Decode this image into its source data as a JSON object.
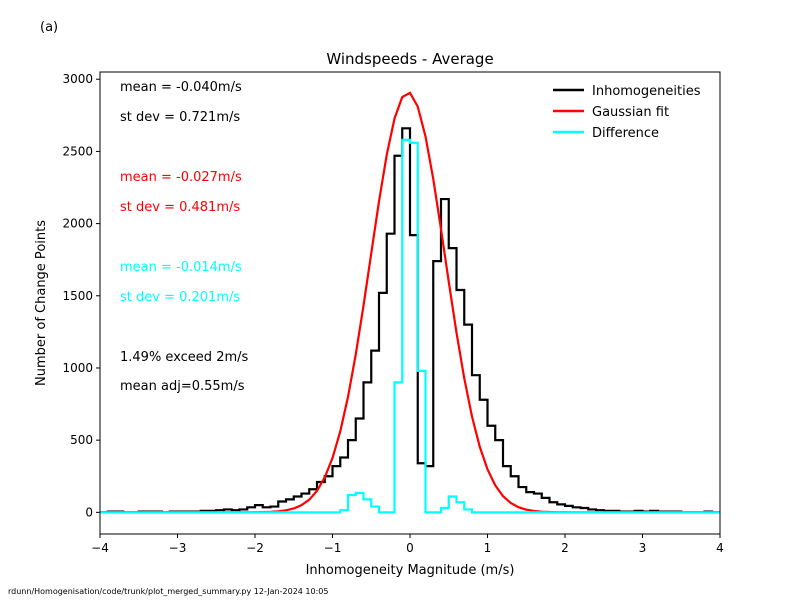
{
  "panel_label": "(a)",
  "footer": "rdunn/Homogenisation/code/trunk/plot_merged_summary.py   12-Jan-2024 10:05",
  "chart_data": {
    "type": "line",
    "title": "Windspeeds - Average",
    "xlabel": "Inhomogeneity Magnitude (m/s)",
    "ylabel": "Number of Change Points",
    "xlim": [
      -4,
      4
    ],
    "ylim": [
      -150,
      3050
    ],
    "xticks": [
      -4,
      -3,
      -2,
      -1,
      0,
      1,
      2,
      3,
      4
    ],
    "yticks": [
      0,
      500,
      1000,
      1500,
      2000,
      2500,
      3000
    ],
    "grid": false,
    "legend_position": "top-right",
    "colors": {
      "inhomogeneities": "#000000",
      "gaussian": "#ff0000",
      "difference": "#00ffff"
    },
    "annotations": [
      {
        "text": "mean = -0.040m/s",
        "color": "#000000"
      },
      {
        "text": "st dev =  0.721m/s",
        "color": "#000000"
      },
      {
        "text": "mean = -0.027m/s",
        "color": "#ff0000"
      },
      {
        "text": "st dev =  0.481m/s",
        "color": "#ff0000"
      },
      {
        "text": "mean = -0.014m/s",
        "color": "#00ffff"
      },
      {
        "text": "st dev =  0.201m/s",
        "color": "#00ffff"
      },
      {
        "text": "1.49% exceed 2m/s",
        "color": "#000000"
      },
      {
        "text": "mean adj=0.55m/s",
        "color": "#000000"
      }
    ],
    "series": [
      {
        "name": "Inhomogeneities",
        "kind": "step",
        "x": [
          -4.0,
          -3.9,
          -3.8,
          -3.7,
          -3.6,
          -3.5,
          -3.4,
          -3.3,
          -3.2,
          -3.1,
          -3.0,
          -2.9,
          -2.8,
          -2.7,
          -2.6,
          -2.5,
          -2.4,
          -2.3,
          -2.2,
          -2.1,
          -2.0,
          -1.9,
          -1.8,
          -1.7,
          -1.6,
          -1.5,
          -1.4,
          -1.3,
          -1.2,
          -1.1,
          -1.0,
          -0.9,
          -0.8,
          -0.7,
          -0.6,
          -0.5,
          -0.4,
          -0.3,
          -0.2,
          -0.1,
          0.0,
          0.1,
          0.2,
          0.3,
          0.4,
          0.5,
          0.6,
          0.7,
          0.8,
          0.9,
          1.0,
          1.1,
          1.2,
          1.3,
          1.4,
          1.5,
          1.6,
          1.7,
          1.8,
          1.9,
          2.0,
          2.1,
          2.2,
          2.3,
          2.4,
          2.5,
          2.6,
          2.7,
          2.8,
          2.9,
          3.0,
          3.1,
          3.2,
          3.3,
          3.4,
          3.5,
          3.6,
          3.7,
          3.8,
          3.9
        ],
        "values": [
          0,
          5,
          5,
          0,
          0,
          5,
          5,
          5,
          0,
          5,
          5,
          5,
          5,
          10,
          10,
          15,
          20,
          15,
          20,
          35,
          50,
          35,
          40,
          75,
          90,
          110,
          130,
          160,
          210,
          250,
          320,
          380,
          500,
          650,
          900,
          1120,
          1520,
          1930,
          2470,
          2660,
          1920,
          340,
          320,
          1740,
          2170,
          1830,
          1540,
          1300,
          950,
          780,
          600,
          500,
          320,
          250,
          175,
          140,
          130,
          100,
          70,
          55,
          45,
          35,
          30,
          20,
          15,
          10,
          10,
          5,
          5,
          10,
          5,
          10,
          5,
          5,
          5,
          0,
          0,
          0,
          5,
          0
        ]
      },
      {
        "name": "Gaussian fit",
        "kind": "curve",
        "mean": -0.027,
        "sd": 0.481,
        "peak": 2910
      },
      {
        "name": "Difference",
        "kind": "step",
        "x": [
          -4.0,
          -3.9,
          -3.8,
          -3.7,
          -3.6,
          -3.5,
          -3.4,
          -3.3,
          -3.2,
          -3.1,
          -3.0,
          -2.9,
          -2.8,
          -2.7,
          -2.6,
          -2.5,
          -2.4,
          -2.3,
          -2.2,
          -2.1,
          -2.0,
          -1.9,
          -1.8,
          -1.7,
          -1.6,
          -1.5,
          -1.4,
          -1.3,
          -1.2,
          -1.1,
          -1.0,
          -0.9,
          -0.8,
          -0.7,
          -0.6,
          -0.5,
          -0.4,
          -0.3,
          -0.2,
          -0.1,
          0.0,
          0.1,
          0.2,
          0.3,
          0.4,
          0.5,
          0.6,
          0.7,
          0.8,
          0.9,
          1.0,
          1.1,
          1.2,
          1.3,
          1.4,
          1.5,
          1.6,
          1.7,
          1.8,
          1.9,
          2.0,
          2.1,
          2.2,
          2.3,
          2.4,
          2.5,
          2.6,
          2.7,
          2.8,
          2.9,
          3.0,
          3.1,
          3.2,
          3.3,
          3.4,
          3.5,
          3.6,
          3.7,
          3.8,
          3.9
        ],
        "values": [
          0,
          0,
          0,
          0,
          0,
          0,
          0,
          0,
          0,
          0,
          0,
          0,
          0,
          0,
          0,
          0,
          0,
          0,
          0,
          0,
          0,
          0,
          0,
          0,
          0,
          0,
          0,
          0,
          0,
          0,
          0,
          15,
          120,
          135,
          90,
          40,
          0,
          0,
          900,
          2580,
          2560,
          980,
          0,
          0,
          30,
          110,
          70,
          20,
          0,
          0,
          0,
          0,
          0,
          0,
          0,
          0,
          0,
          0,
          0,
          0,
          0,
          0,
          0,
          0,
          0,
          0,
          0,
          0,
          0,
          0,
          0,
          0,
          0,
          0,
          0,
          0,
          0,
          0,
          0,
          0
        ]
      }
    ]
  }
}
